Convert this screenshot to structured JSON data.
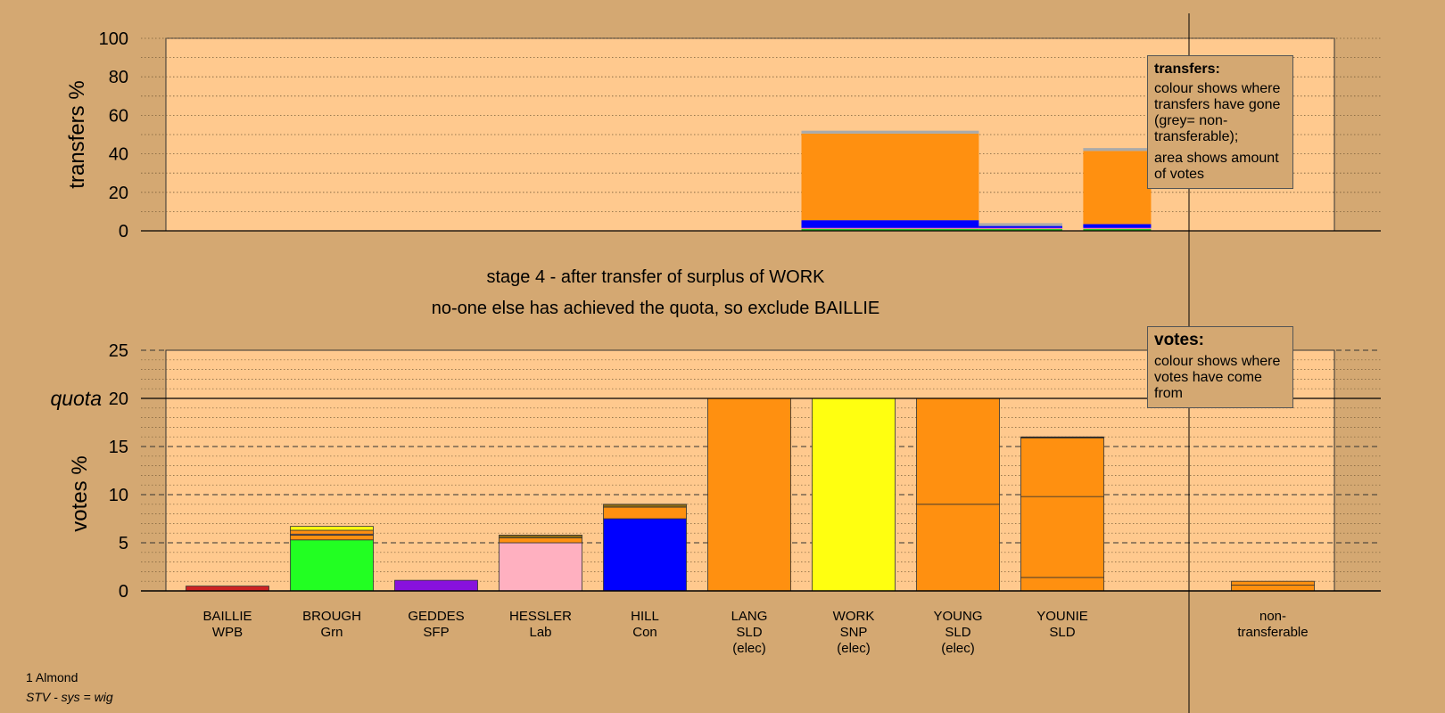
{
  "chart_data": [
    {
      "type": "bar",
      "ylabel": "transfers %",
      "ylim": [
        0,
        100
      ],
      "yticks": [
        0,
        20,
        40,
        60,
        80,
        100
      ],
      "legend": {
        "title": "transfers:",
        "lines": [
          "colour shows where transfers have gone (grey= non-transferable);",
          "area shows amount of votes"
        ]
      },
      "stacked_bars": [
        {
          "x_start": 5.5,
          "x_end": 7.2,
          "segments": [
            {
              "color": "#22cc22",
              "value": 1
            },
            {
              "color": "#ff77aa",
              "value": 0.5
            },
            {
              "color": "#0000ff",
              "value": 4
            },
            {
              "color": "#ff9010",
              "value": 45
            },
            {
              "color": "#aaaaaa",
              "value": 1.5
            }
          ]
        },
        {
          "x_start": 7.2,
          "x_end": 8.0,
          "segments": [
            {
              "color": "#22cc22",
              "value": 1
            },
            {
              "color": "#ff77aa",
              "value": 0.5
            },
            {
              "color": "#0000ff",
              "value": 1
            },
            {
              "color": "#aaaaaa",
              "value": 1.5
            }
          ]
        },
        {
          "x_start": 8.2,
          "x_end": 8.85,
          "segments": [
            {
              "color": "#22cc22",
              "value": 1
            },
            {
              "color": "#ff77aa",
              "value": 0.5
            },
            {
              "color": "#0000ff",
              "value": 2
            },
            {
              "color": "#ff9010",
              "value": 38
            },
            {
              "color": "#aaaaaa",
              "value": 1.5
            }
          ]
        }
      ]
    },
    {
      "type": "bar",
      "ylabel": "votes %",
      "ylim": [
        0,
        25
      ],
      "yticks": [
        0,
        5,
        10,
        15,
        20,
        25
      ],
      "quota": 20,
      "quota_label": "quota",
      "legend": {
        "title": "votes:",
        "lines": [
          "colour shows where votes have come from"
        ]
      },
      "categories": [
        {
          "name": "BAILLIE",
          "party": "WPB",
          "note": ""
        },
        {
          "name": "BROUGH",
          "party": "Grn",
          "note": ""
        },
        {
          "name": "GEDDES",
          "party": "SFP",
          "note": ""
        },
        {
          "name": "HESSLER",
          "party": "Lab",
          "note": ""
        },
        {
          "name": "HILL",
          "party": "Con",
          "note": ""
        },
        {
          "name": "LANG",
          "party": "SLD",
          "note": "(elec)"
        },
        {
          "name": "WORK",
          "party": "SNP",
          "note": "(elec)"
        },
        {
          "name": "YOUNG",
          "party": "SLD",
          "note": "(elec)"
        },
        {
          "name": "YOUNIE",
          "party": "SLD",
          "note": ""
        }
      ],
      "stacks": [
        [
          {
            "color": "#cc2222",
            "value": 0.5
          }
        ],
        [
          {
            "color": "#22ff22",
            "value": 5.3
          },
          {
            "color": "#ff9010",
            "value": 0.5
          },
          {
            "color": "#f0a0c0",
            "value": 0.1
          },
          {
            "color": "#ff9010",
            "value": 0.4
          },
          {
            "color": "#ffff10",
            "value": 0.4
          }
        ],
        [
          {
            "color": "#8811dd",
            "value": 1.1
          }
        ],
        [
          {
            "color": "#ffb0c0",
            "value": 5.0
          },
          {
            "color": "#ff9010",
            "value": 0.5
          },
          {
            "color": "#8b6914",
            "value": 0.3
          }
        ],
        [
          {
            "color": "#0000ff",
            "value": 7.5
          },
          {
            "color": "#ff9010",
            "value": 1.2
          },
          {
            "color": "#8b6914",
            "value": 0.3
          }
        ],
        [
          {
            "color": "#ff9010",
            "value": 20
          }
        ],
        [
          {
            "color": "#ffff10",
            "value": 20
          }
        ],
        [
          {
            "color": "#ff9010",
            "value": 9
          },
          {
            "color": "#ff9010",
            "value": 11
          }
        ],
        [
          {
            "color": "#ff9010",
            "value": 1.4
          },
          {
            "color": "#ff9010",
            "value": 8.4
          },
          {
            "color": "#ff9010",
            "value": 6.1
          },
          {
            "color": "#000000",
            "value": 0.1
          }
        ]
      ],
      "nontransferable": {
        "label_lines": [
          "non-",
          "transferable"
        ],
        "stack": [
          {
            "color": "#ff9010",
            "value": 0.6
          },
          {
            "color": "#ff9010",
            "value": 0.4
          }
        ]
      }
    }
  ],
  "caption": {
    "line1": "stage 4 - after transfer of surplus of WORK",
    "line2": "no-one else has achieved the quota, so exclude BAILLIE"
  },
  "footer": {
    "ward": "1 Almond",
    "system": "STV - sys = wig"
  },
  "colors": {
    "background": "#d4a872",
    "plot_area": "#ffc98e",
    "bar_outline": "#333333"
  }
}
